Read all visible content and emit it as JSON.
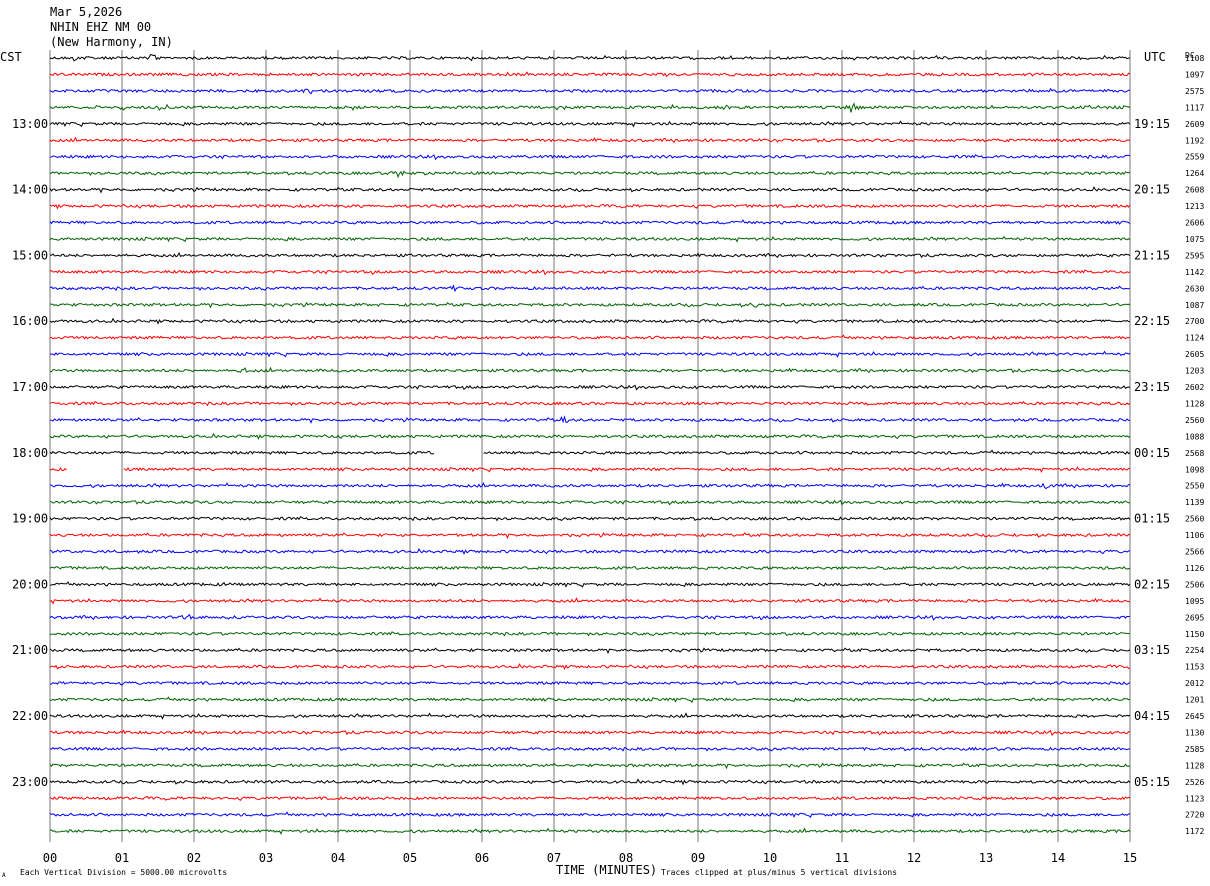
{
  "header": {
    "date": "Mar 5,2026",
    "station": "NHIN EHZ NM 00",
    "location": "(New Harmony, IN)"
  },
  "left_zone_label": "CST",
  "right_zone_label": "UTC",
  "dc_label": "DC",
  "footer": {
    "scale_note": "Each Vertical Division = 5000.00 microvolts",
    "clip_note": "Traces clipped at plus/minus 5 vertical divisions",
    "corner_mark": "A"
  },
  "chart_data": {
    "type": "line",
    "title": "",
    "xlabel": "TIME (MINUTES)",
    "ylabel": "",
    "xlim": [
      0,
      15
    ],
    "x_ticks": [
      "00",
      "01",
      "02",
      "03",
      "04",
      "05",
      "06",
      "07",
      "08",
      "09",
      "10",
      "11",
      "12",
      "13",
      "14",
      "15"
    ],
    "trace_count": 48,
    "minutes_per_trace": 15,
    "trace_colors": [
      "#000000",
      "#ff0000",
      "#0000ff",
      "#006400"
    ],
    "left_hour_labels": [
      {
        "trace": 4,
        "label": "13:00"
      },
      {
        "trace": 8,
        "label": "14:00"
      },
      {
        "trace": 12,
        "label": "15:00"
      },
      {
        "trace": 16,
        "label": "16:00"
      },
      {
        "trace": 20,
        "label": "17:00"
      },
      {
        "trace": 24,
        "label": "18:00"
      },
      {
        "trace": 28,
        "label": "19:00"
      },
      {
        "trace": 32,
        "label": "20:00"
      },
      {
        "trace": 36,
        "label": "21:00"
      },
      {
        "trace": 40,
        "label": "22:00"
      },
      {
        "trace": 44,
        "label": "23:00"
      }
    ],
    "right_hour_labels": [
      {
        "trace": 4,
        "label": "19:15"
      },
      {
        "trace": 8,
        "label": "20:15"
      },
      {
        "trace": 12,
        "label": "21:15"
      },
      {
        "trace": 16,
        "label": "22:15"
      },
      {
        "trace": 20,
        "label": "23:15"
      },
      {
        "trace": 24,
        "label": "00:15"
      },
      {
        "trace": 28,
        "label": "01:15"
      },
      {
        "trace": 32,
        "label": "02:15"
      },
      {
        "trace": 36,
        "label": "03:15"
      },
      {
        "trace": 40,
        "label": "04:15"
      },
      {
        "trace": 44,
        "label": "05:15"
      }
    ],
    "dc_offsets": [
      "1108",
      "1097",
      "2575",
      "1117",
      "2609",
      "1192",
      "2559",
      "1264",
      "2608",
      "1213",
      "2606",
      "1075",
      "2595",
      "1142",
      "2630",
      "1087",
      "2700",
      "1124",
      "2605",
      "1203",
      "2602",
      "1128",
      "2560",
      "1088",
      "2568",
      "1098",
      "2550",
      "1139",
      "2560",
      "1106",
      "2566",
      "1126",
      "2506",
      "1095",
      "2695",
      "1150",
      "2254",
      "1153",
      "2012",
      "1201",
      "2645",
      "1130",
      "2585",
      "1128",
      "2526",
      "1123",
      "2720",
      "1172"
    ],
    "gaps": [
      {
        "trace": 24,
        "start_min": 5.35,
        "end_min": 6.0
      },
      {
        "trace": 25,
        "start_min": 0.25,
        "end_min": 1.0
      }
    ],
    "events": [
      {
        "trace": 0,
        "minute": 0.35,
        "amp": 3
      },
      {
        "trace": 0,
        "minute": 1.4,
        "amp": 4
      },
      {
        "trace": 0,
        "minute": 11.1,
        "amp": 2
      },
      {
        "trace": 2,
        "minute": 3.6,
        "amp": 2
      },
      {
        "trace": 3,
        "minute": 1.0,
        "amp": 2
      },
      {
        "trace": 3,
        "minute": 1.55,
        "amp": 4
      },
      {
        "trace": 3,
        "minute": 9.4,
        "amp": 2
      },
      {
        "trace": 3,
        "minute": 11.15,
        "amp": 5
      },
      {
        "trace": 6,
        "minute": 3.1,
        "amp": 2
      },
      {
        "trace": 7,
        "minute": 4.85,
        "amp": 4
      },
      {
        "trace": 14,
        "minute": 5.6,
        "amp": 3
      },
      {
        "trace": 15,
        "minute": 9.8,
        "amp": 2
      },
      {
        "trace": 19,
        "minute": 2.7,
        "amp": 2
      },
      {
        "trace": 22,
        "minute": 7.15,
        "amp": 3
      },
      {
        "trace": 26,
        "minute": 13.8,
        "amp": 2
      },
      {
        "trace": 29,
        "minute": 4.85,
        "amp": 2
      },
      {
        "trace": 32,
        "minute": 2.5,
        "amp": 2
      },
      {
        "trace": 34,
        "minute": 1.9,
        "amp": 2
      }
    ]
  }
}
